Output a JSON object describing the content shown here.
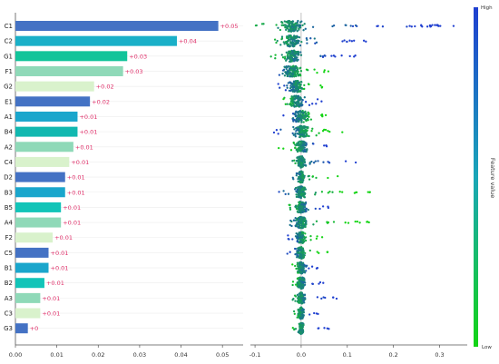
{
  "chart_data": [
    {
      "type": "bar",
      "orientation": "horizontal",
      "categories": [
        "C1",
        "C2",
        "G1",
        "F1",
        "G2",
        "E1",
        "A1",
        "B4",
        "A2",
        "C4",
        "D2",
        "B3",
        "B5",
        "A4",
        "F2",
        "C5",
        "B1",
        "B2",
        "A3",
        "C3",
        "G3"
      ],
      "values": [
        0.049,
        0.039,
        0.027,
        0.026,
        0.019,
        0.018,
        0.015,
        0.015,
        0.014,
        0.013,
        0.012,
        0.012,
        0.011,
        0.011,
        0.009,
        0.008,
        0.008,
        0.007,
        0.006,
        0.006,
        0.003
      ],
      "value_labels": [
        "+0.05",
        "+0.04",
        "+0.03",
        "+0.03",
        "+0.02",
        "+0.02",
        "+0.01",
        "+0.01",
        "+0.01",
        "+0.01",
        "+0.01",
        "+0.01",
        "+0.01",
        "+0.01",
        "+0.01",
        "+0.01",
        "+0.01",
        "+0.01",
        "+0.01",
        "+0.01",
        "+0"
      ],
      "bar_colors": [
        "#4472c4",
        "#1ab0c8",
        "#12c49a",
        "#8fd9b8",
        "#d9f2cc",
        "#4472c4",
        "#1aa6cc",
        "#12b8b0",
        "#8fd9b8",
        "#d9f2cc",
        "#4472c4",
        "#1aa6cc",
        "#12c4b8",
        "#8fd9b8",
        "#d9f2cc",
        "#4472c4",
        "#1aa6cc",
        "#12c4b8",
        "#8fd9b8",
        "#d9f2cc",
        "#4472c4"
      ],
      "label_color": "#e0306a",
      "xlim": [
        0,
        0.055
      ],
      "xticks": [
        0.0,
        0.01,
        0.02,
        0.03,
        0.04,
        0.05
      ],
      "xtick_labels": [
        "0.00",
        "0.01",
        "0.02",
        "0.03",
        "0.04",
        "0.05"
      ],
      "grid": "horizontal light"
    },
    {
      "type": "scatter",
      "style": "beeswarm",
      "categories": [
        "C1",
        "C2",
        "G1",
        "F1",
        "G2",
        "E1",
        "A1",
        "B4",
        "A2",
        "C4",
        "D2",
        "B3",
        "B5",
        "A4",
        "F2",
        "C5",
        "B1",
        "B2",
        "A3",
        "C3",
        "G3"
      ],
      "xlim": [
        -0.11,
        0.36
      ],
      "xticks": [
        -0.1,
        0.0,
        0.1,
        0.2,
        0.3
      ],
      "xtick_labels": [
        "-0.1",
        "0.0",
        "0.1",
        "0.2",
        "0.3"
      ],
      "colorbar": {
        "label": "Feature value",
        "high": "High",
        "low": "Low",
        "high_color": "#1f3fd0",
        "low_color": "#14d414"
      },
      "rows": [
        {
          "center": -0.02,
          "spread": 0.035,
          "low_min": -0.1,
          "high_max": 0.34,
          "high_right": true
        },
        {
          "center": -0.02,
          "spread": 0.03,
          "low_min": -0.07,
          "high_max": 0.16,
          "high_right": true
        },
        {
          "center": -0.02,
          "spread": 0.03,
          "low_min": -0.07,
          "high_max": 0.12,
          "high_right": true
        },
        {
          "center": -0.02,
          "spread": 0.03,
          "low_min": -0.05,
          "high_max": 0.06,
          "high_right": false
        },
        {
          "center": -0.01,
          "spread": 0.025,
          "low_min": -0.05,
          "high_max": 0.05,
          "high_right": false
        },
        {
          "center": -0.01,
          "spread": 0.025,
          "low_min": -0.04,
          "high_max": 0.05,
          "high_right": true
        },
        {
          "center": 0.0,
          "spread": 0.03,
          "low_min": -0.04,
          "high_max": 0.06,
          "high_right": false
        },
        {
          "center": 0.0,
          "spread": 0.03,
          "low_min": -0.06,
          "high_max": 0.09,
          "high_right": false
        },
        {
          "center": 0.0,
          "spread": 0.025,
          "low_min": -0.05,
          "high_max": 0.06,
          "high_right": true
        },
        {
          "center": 0.0,
          "spread": 0.015,
          "low_min": -0.02,
          "high_max": 0.12,
          "high_right": true
        },
        {
          "center": 0.0,
          "spread": 0.01,
          "low_min": -0.02,
          "high_max": 0.09,
          "high_right": false
        },
        {
          "center": 0.0,
          "spread": 0.02,
          "low_min": -0.05,
          "high_max": 0.16,
          "high_right": false
        },
        {
          "center": 0.0,
          "spread": 0.02,
          "low_min": -0.03,
          "high_max": 0.06,
          "high_right": true
        },
        {
          "center": 0.0,
          "spread": 0.02,
          "low_min": -0.03,
          "high_max": 0.16,
          "high_right": false
        },
        {
          "center": 0.0,
          "spread": 0.015,
          "low_min": -0.03,
          "high_max": 0.05,
          "high_right": false
        },
        {
          "center": 0.0,
          "spread": 0.015,
          "low_min": -0.03,
          "high_max": 0.06,
          "high_right": false
        },
        {
          "center": 0.0,
          "spread": 0.015,
          "low_min": -0.02,
          "high_max": 0.04,
          "high_right": true
        },
        {
          "center": 0.0,
          "spread": 0.015,
          "low_min": -0.02,
          "high_max": 0.05,
          "high_right": true
        },
        {
          "center": 0.0,
          "spread": 0.012,
          "low_min": -0.02,
          "high_max": 0.08,
          "high_right": true
        },
        {
          "center": 0.0,
          "spread": 0.01,
          "low_min": -0.02,
          "high_max": 0.04,
          "high_right": true
        },
        {
          "center": 0.0,
          "spread": 0.008,
          "low_min": -0.02,
          "high_max": 0.06,
          "high_right": true
        }
      ]
    }
  ]
}
